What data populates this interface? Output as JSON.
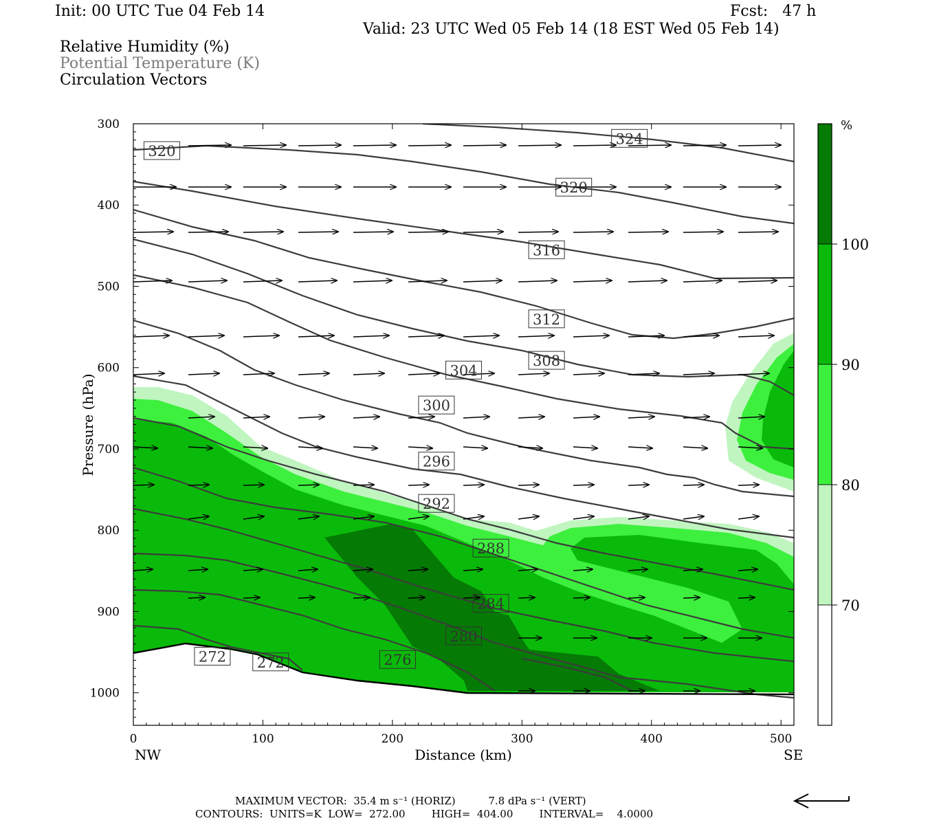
{
  "header": {
    "init": "Init: 00 UTC Tue 04 Feb 14",
    "fcst": "Fcst:   47 h",
    "valid": "Valid: 23 UTC Wed 05 Feb 14 (18 EST Wed 05 Feb 14)"
  },
  "legend_titles": [
    {
      "text": "Relative Humidity (%)",
      "color": "#000000"
    },
    {
      "text": "Potential Temperature (K)",
      "color": "#7a7a7a"
    },
    {
      "text": "Circulation Vectors",
      "color": "#000000"
    }
  ],
  "footer": {
    "max_vector": "MAXIMUM VECTOR:  35.4 m s⁻¹ (HORIZ)          7.8 dPa s⁻¹ (VERT)",
    "contours": "CONTOURS:  UNITS=K  LOW=  272.00        HIGH=  404.00        INTERVAL=    4.0000"
  },
  "chart_data": {
    "type": "cross-section",
    "xlabel": "Distance (km)",
    "ylabel": "Pressure (hPa)",
    "xlim": [
      0,
      510
    ],
    "ylim": [
      1040,
      300
    ],
    "x_ticks": [
      0,
      100,
      200,
      300,
      400,
      500
    ],
    "y_ticks": [
      300,
      400,
      500,
      600,
      700,
      800,
      900,
      1000
    ],
    "x_end_labels": {
      "left": "NW",
      "right": "SE"
    },
    "colorbar": {
      "unit": "%",
      "levels": [
        70,
        80,
        90,
        100
      ],
      "colors": [
        "#ffffff",
        "#c0f5c0",
        "#3ef03e",
        "#0aba0a",
        "#057a05"
      ]
    },
    "colors": {
      "theta_line": "#3c3c3c",
      "rh_70_80": "#c0f5c0",
      "rh_80_90": "#3ef03e",
      "rh_90_100": "#0aba0a",
      "rh_100": "#057a05"
    },
    "terrain_surface": [
      [
        0,
        950
      ],
      [
        40,
        942
      ],
      [
        80,
        944
      ],
      [
        130,
        978
      ],
      [
        180,
        990
      ],
      [
        260,
        1002
      ],
      [
        510,
        1002
      ]
    ],
    "theta_labels": [
      {
        "value": "324",
        "x": 383,
        "p": 318
      },
      {
        "value": "320",
        "x": 22,
        "p": 333
      },
      {
        "value": "320",
        "x": 340,
        "p": 378
      },
      {
        "value": "316",
        "x": 319,
        "p": 455
      },
      {
        "value": "312",
        "x": 319,
        "p": 540
      },
      {
        "value": "308",
        "x": 319,
        "p": 591
      },
      {
        "value": "304",
        "x": 255,
        "p": 603
      },
      {
        "value": "300",
        "x": 234,
        "p": 646
      },
      {
        "value": "296",
        "x": 234,
        "p": 715
      },
      {
        "value": "292",
        "x": 234,
        "p": 767
      },
      {
        "value": "288",
        "x": 276,
        "p": 822
      },
      {
        "value": "284",
        "x": 276,
        "p": 890
      },
      {
        "value": "280",
        "x": 255,
        "p": 930
      },
      {
        "value": "276",
        "x": 204,
        "p": 959
      },
      {
        "value": "272",
        "x": 61,
        "p": 955
      },
      {
        "value": "272",
        "x": 106,
        "p": 962
      }
    ]
  }
}
